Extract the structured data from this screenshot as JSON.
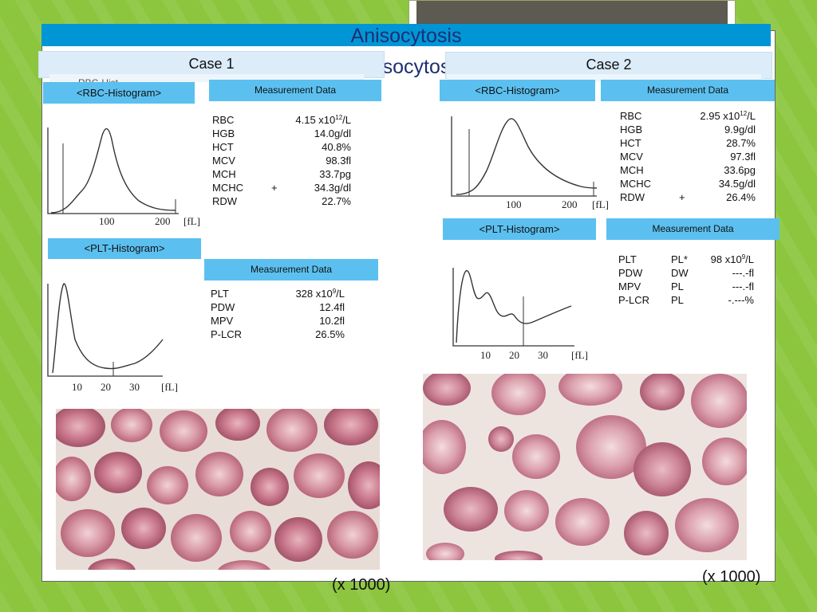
{
  "slide": {
    "title": "Anisocytosis",
    "colors": {
      "background": "#8cc63f",
      "title_bar": "#0096d6",
      "header_box": "#5bc0f0",
      "case_bar": "#dcecf8",
      "dark_card": "#5d5a52"
    }
  },
  "case1": {
    "title": "Case 1",
    "rbc_histogram": {
      "header": "<RBC-Histogram>",
      "x_tick_labels": [
        "100",
        "200",
        "[fL]"
      ],
      "partial_text": "RBC-Hist"
    },
    "rbc_measurements": {
      "header": "Measurement Data",
      "rows": [
        {
          "name": "RBC",
          "flag": "",
          "value": "4.15 x10",
          "sup": "12",
          "unit": "/L"
        },
        {
          "name": "HGB",
          "flag": "",
          "value": "14.0g/dl",
          "sup": "",
          "unit": ""
        },
        {
          "name": "HCT",
          "flag": "",
          "value": "40.8%",
          "sup": "",
          "unit": ""
        },
        {
          "name": "MCV",
          "flag": "",
          "value": "98.3fl",
          "sup": "",
          "unit": ""
        },
        {
          "name": "MCH",
          "flag": "",
          "value": "33.7pg",
          "sup": "",
          "unit": ""
        },
        {
          "name": "MCHC",
          "flag": "+",
          "value": "34.3g/dl",
          "sup": "",
          "unit": ""
        },
        {
          "name": "RDW",
          "flag": "",
          "value": "22.7%",
          "sup": "",
          "unit": ""
        }
      ]
    },
    "plt_histogram": {
      "header": "<PLT-Histogram>",
      "x_tick_labels": [
        "10",
        "20",
        "30",
        "[fL]"
      ]
    },
    "plt_measurements": {
      "header": "Measurement Data",
      "rows": [
        {
          "name": "PLT",
          "flag": "",
          "value": "328 x10",
          "sup": "9",
          "unit": "/L"
        },
        {
          "name": "PDW",
          "flag": "",
          "value": "12.4fl",
          "sup": "",
          "unit": ""
        },
        {
          "name": "MPV",
          "flag": "",
          "value": "10.2fl",
          "sup": "",
          "unit": ""
        },
        {
          "name": "P-LCR",
          "flag": "",
          "value": "26.5%",
          "sup": "",
          "unit": ""
        }
      ]
    },
    "smear_caption": "(x 1000)"
  },
  "case2": {
    "title": "Case 2",
    "rbc_histogram": {
      "header": "<RBC-Histogram>",
      "x_tick_labels": [
        "100",
        "200",
        "[fL]"
      ]
    },
    "rbc_measurements": {
      "header": "Measurement Data",
      "rows": [
        {
          "name": "RBC",
          "flag": "",
          "value": "2.95 x10",
          "sup": "12",
          "unit": "/L"
        },
        {
          "name": "HGB",
          "flag": "",
          "value": "9.9g/dl",
          "sup": "",
          "unit": ""
        },
        {
          "name": "HCT",
          "flag": "",
          "value": "28.7%",
          "sup": "",
          "unit": ""
        },
        {
          "name": "MCV",
          "flag": "",
          "value": "97.3fl",
          "sup": "",
          "unit": ""
        },
        {
          "name": "MCH",
          "flag": "",
          "value": "33.6pg",
          "sup": "",
          "unit": ""
        },
        {
          "name": "MCHC",
          "flag": "",
          "value": "34.5g/dl",
          "sup": "",
          "unit": ""
        },
        {
          "name": "RDW",
          "flag": "+",
          "value": "26.4%",
          "sup": "",
          "unit": ""
        }
      ]
    },
    "plt_histogram": {
      "header": "<PLT-Histogram>",
      "x_tick_labels": [
        "10",
        "20",
        "30",
        "[fL]"
      ]
    },
    "plt_measurements": {
      "header": "Measurement Data",
      "rows": [
        {
          "name": "PLT",
          "flag": "PL*",
          "value": "98 x10",
          "sup": "9",
          "unit": "/L"
        },
        {
          "name": "PDW",
          "flag": "DW",
          "value": "---.-fl",
          "sup": "",
          "unit": ""
        },
        {
          "name": "MPV",
          "flag": "PL",
          "value": "---.-fl",
          "sup": "",
          "unit": ""
        },
        {
          "name": "P-LCR",
          "flag": "PL",
          "value": "-.---%",
          "sup": "",
          "unit": ""
        }
      ]
    },
    "smear_caption": "(x 1000)"
  }
}
